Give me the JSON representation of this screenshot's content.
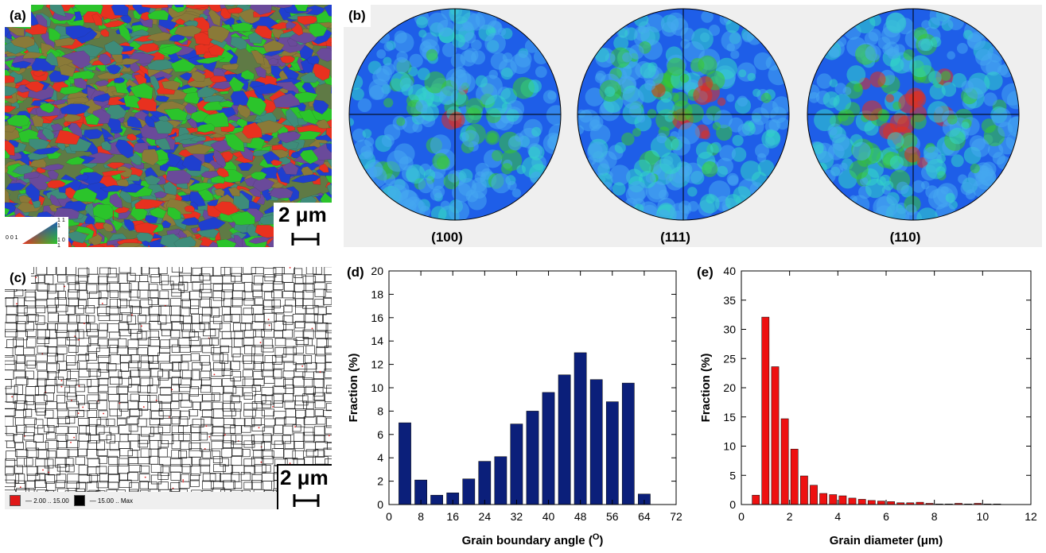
{
  "panels": {
    "a": {
      "label": "(a)",
      "scalebar": "2 μm",
      "legend": {
        "corner_001": "0 0 1",
        "corner_111": "1 1 1",
        "corner_101": "1 0 1"
      },
      "colors": [
        "#e8311f",
        "#2bc42b",
        "#1f3fcf",
        "#8a7a38",
        "#3e8c7a",
        "#6a4a9a"
      ]
    },
    "b": {
      "label": "(b)",
      "poles": [
        "(100)",
        "(111)",
        "(110)"
      ]
    },
    "c": {
      "label": "(c)",
      "scalebar": "2 μm",
      "legend": {
        "low_label": "— 2.00 .. 15.00",
        "high_label": "— 15.00 .. Max",
        "low_color": "#e01818",
        "high_color": "#000000"
      }
    },
    "d": {
      "label": "(d)"
    },
    "e": {
      "label": "(e)"
    }
  },
  "chart_data": [
    {
      "type": "bar",
      "panel": "d",
      "xlabel": "Grain boundary angle (",
      "xlabel_sup": "O",
      "xlabel_end": ")",
      "ylabel": "Fraction (%)",
      "xlim": [
        0,
        72
      ],
      "ylim": [
        0,
        20
      ],
      "xticks": [
        0,
        8,
        16,
        24,
        32,
        40,
        48,
        56,
        64,
        72
      ],
      "yticks": [
        0,
        2,
        4,
        6,
        8,
        10,
        12,
        14,
        16,
        18,
        20
      ],
      "bin_width": 4,
      "x": [
        4,
        8,
        12,
        16,
        20,
        24,
        28,
        32,
        36,
        40,
        44,
        48,
        52,
        56,
        60,
        64
      ],
      "values": [
        7.0,
        2.1,
        0.8,
        1.0,
        2.2,
        3.7,
        4.1,
        6.9,
        8.0,
        9.6,
        11.1,
        13.0,
        10.7,
        8.8,
        10.4,
        0.9
      ],
      "color": "#0b1f7a"
    },
    {
      "type": "bar",
      "panel": "e",
      "xlabel": "Grain diameter (μm)",
      "ylabel": "Fraction (%)",
      "xlim": [
        0,
        12
      ],
      "ylim": [
        0,
        40
      ],
      "xticks": [
        0,
        2,
        4,
        6,
        8,
        10,
        12
      ],
      "yticks": [
        0,
        5,
        10,
        15,
        20,
        25,
        30,
        35,
        40
      ],
      "bin_width": 0.4,
      "x": [
        0.6,
        1.0,
        1.4,
        1.8,
        2.2,
        2.6,
        3.0,
        3.4,
        3.8,
        4.2,
        4.6,
        5.0,
        5.4,
        5.8,
        6.2,
        6.6,
        7.0,
        7.4,
        7.8,
        8.2,
        8.6,
        9.0,
        9.4,
        9.8,
        10.2,
        10.6
      ],
      "values": [
        1.6,
        32.1,
        23.6,
        14.7,
        9.5,
        4.9,
        3.3,
        1.9,
        1.7,
        1.5,
        1.1,
        0.9,
        0.7,
        0.6,
        0.5,
        0.3,
        0.3,
        0.4,
        0.2,
        0.1,
        0.1,
        0.2,
        0.1,
        0.2,
        0.1,
        0.1
      ],
      "color": "#ee1111"
    }
  ]
}
